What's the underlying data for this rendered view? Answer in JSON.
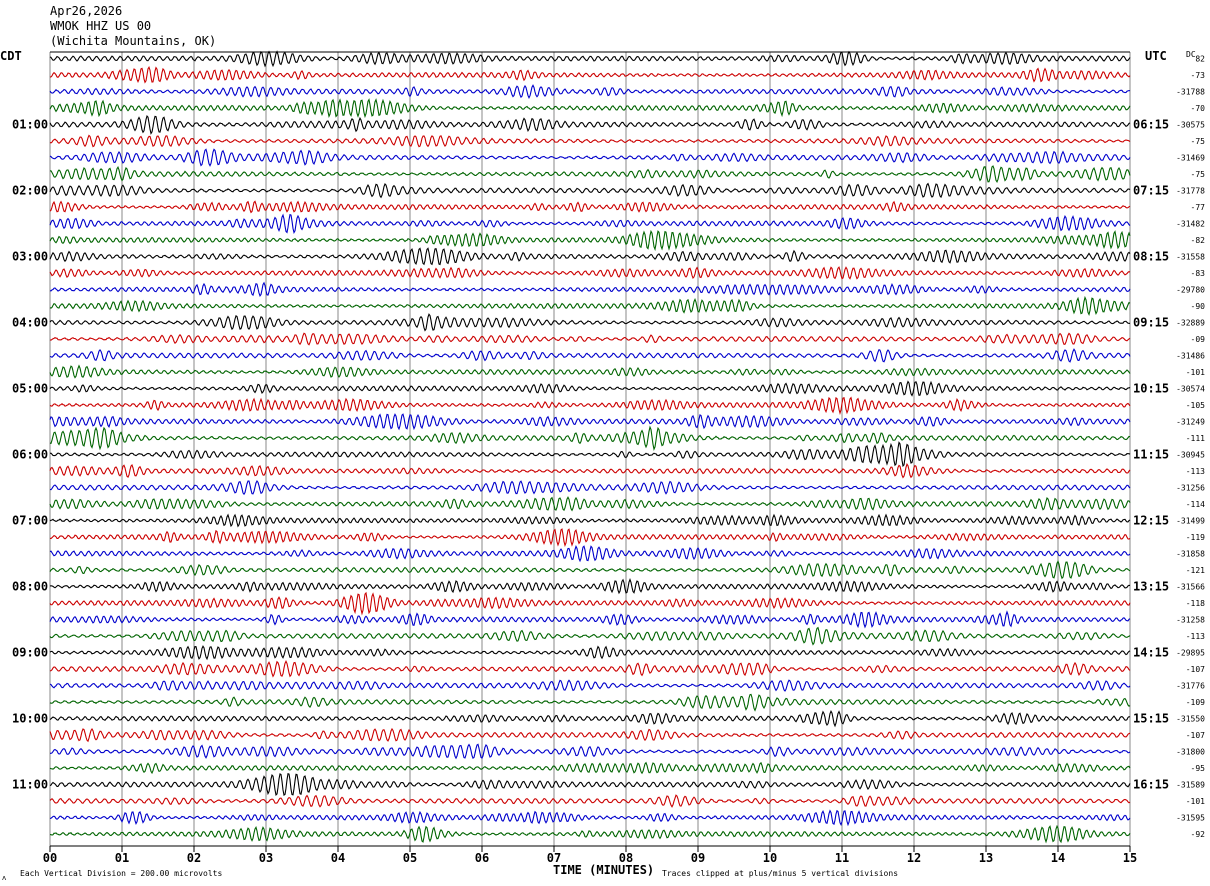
{
  "header": {
    "date": "Apr26,2026",
    "station": "WMOK HHZ US 00",
    "location": "(Wichita Mountains, OK)"
  },
  "labels": {
    "left_tz": "CDT",
    "right_tz": "UTC",
    "dc": "DC",
    "xaxis": "TIME (MINUTES)",
    "scale_note": "Each Vertical Division = 200.00 microvolts",
    "clip_note": "Traces clipped at plus/minus 5 vertical divisions"
  },
  "chart_data": {
    "type": "line",
    "title": "",
    "xlabel": "TIME (MINUTES)",
    "ylabel": "",
    "xlim": [
      0,
      15
    ],
    "x_ticks": [
      "00",
      "01",
      "02",
      "03",
      "04",
      "05",
      "06",
      "07",
      "08",
      "09",
      "10",
      "11",
      "12",
      "13",
      "14",
      "15"
    ],
    "grid": true,
    "trace_minutes": 15,
    "trace_count": 48,
    "trace_colors": [
      "#000000",
      "#cc0000",
      "#0000cc",
      "#006400"
    ],
    "left_hour_labels": [
      "01:00",
      "02:00",
      "03:00",
      "04:00",
      "05:00",
      "06:00",
      "07:00",
      "08:00",
      "09:00",
      "10:00",
      "11:00"
    ],
    "right_hour_labels": [
      "06:15",
      "07:15",
      "08:15",
      "09:15",
      "10:15",
      "11:15",
      "12:15",
      "13:15",
      "14:15",
      "15:15",
      "16:15"
    ],
    "dc_offsets": [
      "82",
      "-73",
      "-31788",
      "-70",
      "-30575",
      "-75",
      "-31469",
      "-75",
      "-31778",
      "-77",
      "-31482",
      "-82",
      "-31558",
      "-83",
      "-29780",
      "-90",
      "-32889",
      "-09",
      "-31486",
      "-101",
      "-30574",
      "-105",
      "-31249",
      "-111",
      "-30945",
      "-113",
      "-31256",
      "-114",
      "-31499",
      "-119",
      "-31858",
      "-121",
      "-31566",
      "-118",
      "-31258",
      "-113",
      "-29895",
      "-107",
      "-31776",
      "-109",
      "-31550",
      "-107",
      "-31800",
      "-95",
      "-31589",
      "-101",
      "-31595",
      "-92"
    ]
  }
}
